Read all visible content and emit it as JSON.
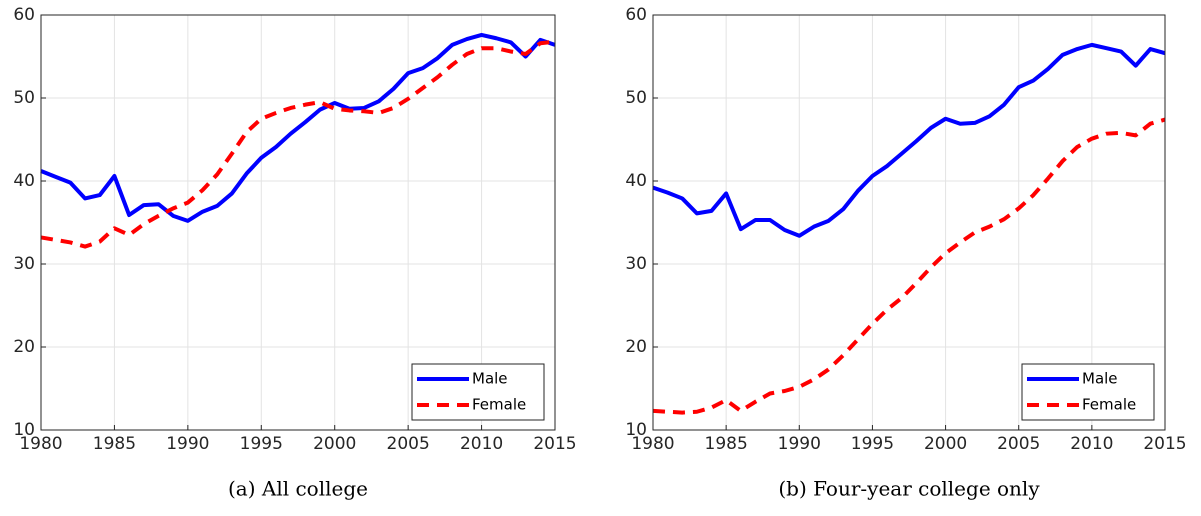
{
  "chart_data": [
    {
      "type": "line",
      "caption": "(a) All college",
      "x": [
        1980,
        1981,
        1982,
        1983,
        1984,
        1985,
        1986,
        1987,
        1988,
        1989,
        1990,
        1991,
        1992,
        1993,
        1994,
        1995,
        1996,
        1997,
        1998,
        1999,
        2000,
        2001,
        2002,
        2003,
        2004,
        2005,
        2006,
        2007,
        2008,
        2009,
        2010,
        2011,
        2012,
        2013,
        2014,
        2015
      ],
      "series": [
        {
          "name": "Male",
          "color": "#0000ff",
          "dash": "solid",
          "values": [
            41.2,
            40.5,
            39.8,
            37.9,
            38.3,
            40.6,
            35.9,
            37.1,
            37.2,
            35.8,
            35.2,
            36.3,
            37.0,
            38.5,
            40.9,
            42.8,
            44.1,
            45.7,
            47.1,
            48.6,
            49.4,
            48.7,
            48.8,
            49.6,
            51.1,
            53.0,
            53.6,
            54.8,
            56.4,
            57.1,
            57.6,
            57.2,
            56.7,
            55.0,
            57.0,
            56.4
          ]
        },
        {
          "name": "Female",
          "color": "#ff0000",
          "dash": "dashed",
          "values": [
            33.2,
            32.9,
            32.6,
            32.1,
            32.7,
            34.3,
            33.5,
            34.8,
            35.8,
            36.7,
            37.4,
            38.9,
            40.8,
            43.3,
            45.9,
            47.5,
            48.2,
            48.8,
            49.2,
            49.5,
            48.7,
            48.5,
            48.4,
            48.2,
            48.8,
            49.9,
            51.2,
            52.5,
            54.0,
            55.3,
            56.0,
            56.0,
            55.6,
            55.3,
            56.6,
            56.8
          ]
        }
      ],
      "xlim": [
        1980,
        2015
      ],
      "xticks": [
        1980,
        1985,
        1990,
        1995,
        2000,
        2005,
        2010,
        2015
      ],
      "ylim": [
        10,
        60
      ],
      "yticks": [
        10,
        20,
        30,
        40,
        50,
        60
      ],
      "grid": true,
      "legend": "lower-right"
    },
    {
      "type": "line",
      "caption": "(b) Four-year college only",
      "x": [
        1980,
        1981,
        1982,
        1983,
        1984,
        1985,
        1986,
        1987,
        1988,
        1989,
        1990,
        1991,
        1992,
        1993,
        1994,
        1995,
        1996,
        1997,
        1998,
        1999,
        2000,
        2001,
        2002,
        2003,
        2004,
        2005,
        2006,
        2007,
        2008,
        2009,
        2010,
        2011,
        2012,
        2013,
        2014,
        2015
      ],
      "series": [
        {
          "name": "Male",
          "color": "#0000ff",
          "dash": "solid",
          "values": [
            39.2,
            38.6,
            37.9,
            36.1,
            36.4,
            38.5,
            34.2,
            35.3,
            35.3,
            34.1,
            33.4,
            34.5,
            35.2,
            36.6,
            38.8,
            40.6,
            41.8,
            43.3,
            44.8,
            46.4,
            47.5,
            46.9,
            47.0,
            47.8,
            49.2,
            51.3,
            52.1,
            53.5,
            55.2,
            55.9,
            56.4,
            56.0,
            55.6,
            53.9,
            55.9,
            55.4
          ]
        },
        {
          "name": "Female",
          "color": "#ff0000",
          "dash": "dashed",
          "values": [
            12.3,
            12.2,
            12.1,
            12.2,
            12.7,
            13.6,
            12.3,
            13.4,
            14.4,
            14.7,
            15.2,
            16.1,
            17.3,
            19.0,
            20.9,
            22.8,
            24.5,
            25.9,
            27.7,
            29.6,
            31.3,
            32.6,
            33.8,
            34.5,
            35.4,
            36.7,
            38.3,
            40.3,
            42.4,
            44.1,
            45.1,
            45.7,
            45.8,
            45.5,
            46.9,
            47.4
          ]
        }
      ],
      "xlim": [
        1980,
        2015
      ],
      "xticks": [
        1980,
        1985,
        1990,
        1995,
        2000,
        2005,
        2010,
        2015
      ],
      "ylim": [
        10,
        60
      ],
      "yticks": [
        10,
        20,
        30,
        40,
        50,
        60
      ],
      "grid": true,
      "legend": "lower-right"
    }
  ]
}
